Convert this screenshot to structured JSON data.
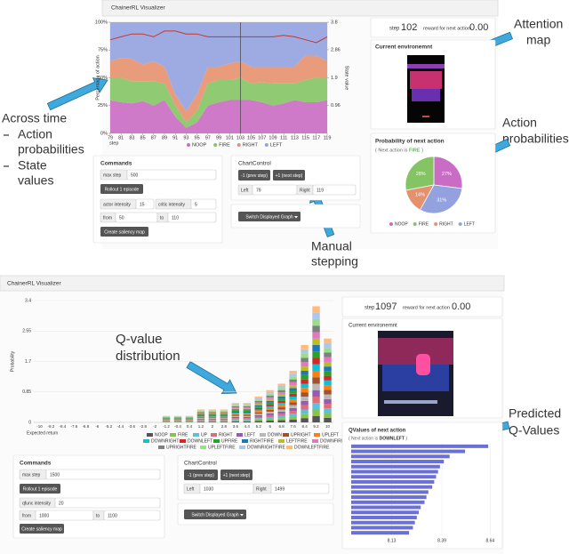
{
  "annotations": {
    "across_time": "Across time",
    "across_items": [
      [
        "Action",
        "probabilities"
      ],
      [
        "State",
        "values"
      ]
    ],
    "attention_map": [
      "Attention",
      "map"
    ],
    "action_probabilities": [
      "Action",
      "probabilities"
    ],
    "manual_stepping": [
      "Manual",
      "stepping"
    ],
    "q_value_distribution": [
      "Q-value",
      "distribution"
    ],
    "predicted_q_values": [
      "Predicted",
      "Q-Values"
    ]
  },
  "top": {
    "app_title": "ChainerRL Visualizer",
    "chart": {
      "type": "area",
      "ylabel": "Percentage of action",
      "y2label": "State value",
      "xlabel": "step",
      "x": [
        79,
        81,
        83,
        85,
        87,
        89,
        91,
        93,
        95,
        97,
        99,
        101,
        103,
        105,
        107,
        109,
        111,
        113,
        115,
        117,
        119
      ],
      "xlim": [
        79,
        119
      ],
      "xticks": [
        79,
        81,
        83,
        85,
        87,
        89,
        91,
        93,
        95,
        97,
        99,
        101,
        103,
        105,
        107,
        109,
        111,
        113,
        115,
        117,
        119
      ],
      "ylim": [
        0,
        100
      ],
      "yticks": [
        {
          "value": 0,
          "label": "0%"
        },
        {
          "value": 25,
          "label": "25%"
        },
        {
          "value": 50,
          "label": "50%"
        },
        {
          "value": 75,
          "label": "75%"
        },
        {
          "value": 100,
          "label": "100%"
        }
      ],
      "y2lim": [
        0,
        3.8
      ],
      "y2ticks": [
        0.96,
        1.9,
        2.86,
        3.8
      ],
      "current_x": 103,
      "series": [
        {
          "name": "NOOP",
          "color": "#c96cc3",
          "values": [
            30,
            28,
            27,
            29,
            25,
            30,
            15,
            5,
            10,
            25,
            28,
            30,
            30,
            30,
            28,
            25,
            27,
            30,
            28,
            28,
            30
          ]
        },
        {
          "name": "FIRE",
          "color": "#84c463",
          "values": [
            20,
            22,
            20,
            18,
            22,
            15,
            10,
            5,
            10,
            20,
            20,
            18,
            20,
            15,
            18,
            20,
            18,
            15,
            20,
            22,
            20
          ]
        },
        {
          "name": "RIGHT",
          "color": "#e5916e",
          "values": [
            15,
            18,
            20,
            15,
            18,
            15,
            10,
            10,
            15,
            15,
            12,
            15,
            15,
            15,
            14,
            15,
            15,
            15,
            22,
            20,
            15
          ]
        },
        {
          "name": "LEFT",
          "color": "#93a2df",
          "values": [
            35,
            32,
            33,
            38,
            35,
            40,
            65,
            80,
            65,
            40,
            40,
            37,
            35,
            40,
            40,
            40,
            40,
            40,
            30,
            30,
            35
          ]
        }
      ],
      "state_value": {
        "axis": "y2",
        "color": "#c0392b",
        "values": [
          3.2,
          3.3,
          3.4,
          3.4,
          3.3,
          3.5,
          3.5,
          3.4,
          3.4,
          3.3,
          3.3,
          3.3,
          3.3,
          3.3,
          3.3,
          3.3,
          3.35,
          3.3,
          3.2,
          3.1,
          3.3
        ]
      }
    },
    "status": {
      "step_label": "step",
      "step": "102",
      "reward_label": "reward for next action",
      "reward": "0.00"
    },
    "environment_title": "Current environemnt",
    "action_panel": {
      "title": "Probability of next action",
      "note_open": "( Next action is",
      "note_action": "FIRE",
      "note_close": ")",
      "pie": {
        "type": "pie",
        "categories": [
          "NOOP",
          "FIRE",
          "RIGHT",
          "LEFT"
        ],
        "values": [
          27,
          28,
          14,
          31
        ],
        "value_labels": [
          "27%",
          "28%",
          "14%",
          "31%"
        ],
        "colors": [
          "#c96cc3",
          "#84c463",
          "#e5916e",
          "#93a2df"
        ]
      }
    },
    "commands": {
      "title": "Commands",
      "max_step_label": "max step",
      "max_step": "500",
      "rollout": "Rollout 1 episode",
      "actor_label": "actor intensity",
      "actor": "15",
      "critic_label": "critic intensity",
      "critic": "5",
      "from_label": "from",
      "from": "50",
      "to_label": "to",
      "to": "110",
      "saliency": "Create saliency map"
    },
    "chart_control": {
      "title": "ChartControl",
      "prev": "-1 (prev step)",
      "next": "+1 (next step)",
      "left_label": "Left",
      "left": "79",
      "right_label": "Right",
      "right": "119",
      "switch": "Switch Displayed Graph"
    }
  },
  "bottom": {
    "app_title": "ChainerRL Visualizer",
    "chart": {
      "type": "stacked-bar",
      "ylabel": "Probability",
      "xlabel": "Expected return",
      "x": [
        -10,
        -9.2,
        -8.4,
        -7.6,
        -6.8,
        -6,
        -5.2,
        -4.4,
        -3.6,
        -2.8,
        -2,
        -1.2,
        -0.4,
        0.4,
        1.2,
        2,
        2.8,
        3.6,
        4.4,
        5.2,
        6,
        6.8,
        7.6,
        8.4,
        9.2,
        10
      ],
      "xlim": [
        -10.4,
        10.4
      ],
      "xticks": [
        -10,
        -9.2,
        -8.4,
        -7.6,
        -6.8,
        -6,
        -5.2,
        -4.4,
        -3.6,
        -2.8,
        -2,
        -1.2,
        -0.4,
        0.4,
        1.2,
        2,
        2.8,
        3.6,
        4.4,
        5.2,
        6,
        6.8,
        7.6,
        8.4,
        9.2,
        10
      ],
      "ylim": [
        0,
        3.4
      ],
      "yticks": [
        0,
        0.85,
        1.7,
        2.55,
        3.4
      ],
      "series": [
        {
          "name": "NOOP",
          "color": "#555555",
          "values": [
            0,
            0,
            0,
            0,
            0,
            0,
            0,
            0,
            0,
            0,
            0,
            0.01,
            0.01,
            0.01,
            0.02,
            0.02,
            0.02,
            0.03,
            0.03,
            0.04,
            0.05,
            0.06,
            0.08,
            0.12,
            0.18,
            0.13
          ]
        },
        {
          "name": "FIRE",
          "color": "#8bc34a",
          "values": [
            0,
            0,
            0,
            0,
            0,
            0,
            0,
            0,
            0,
            0,
            0,
            0.01,
            0.01,
            0.01,
            0.02,
            0.02,
            0.02,
            0.03,
            0.03,
            0.04,
            0.05,
            0.06,
            0.08,
            0.12,
            0.18,
            0.13
          ]
        },
        {
          "name": "UP",
          "color": "#5bc0de",
          "values": [
            0,
            0,
            0,
            0,
            0,
            0,
            0,
            0,
            0,
            0,
            0,
            0.01,
            0.01,
            0.01,
            0.02,
            0.02,
            0.02,
            0.03,
            0.03,
            0.04,
            0.05,
            0.06,
            0.08,
            0.12,
            0.18,
            0.13
          ]
        },
        {
          "name": "RIGHT",
          "color": "#e06c75",
          "values": [
            0,
            0,
            0,
            0,
            0,
            0,
            0,
            0,
            0,
            0,
            0,
            0.01,
            0.01,
            0.01,
            0.02,
            0.02,
            0.02,
            0.03,
            0.03,
            0.04,
            0.05,
            0.06,
            0.08,
            0.12,
            0.18,
            0.13
          ]
        },
        {
          "name": "LEFT",
          "color": "#9b59b6",
          "values": [
            0,
            0,
            0,
            0,
            0,
            0,
            0,
            0,
            0,
            0,
            0,
            0.01,
            0.01,
            0.01,
            0.02,
            0.02,
            0.02,
            0.03,
            0.03,
            0.04,
            0.05,
            0.06,
            0.08,
            0.12,
            0.18,
            0.13
          ]
        },
        {
          "name": "DOWN",
          "color": "#b8b8b8",
          "values": [
            0,
            0,
            0,
            0,
            0,
            0,
            0,
            0,
            0,
            0,
            0,
            0.01,
            0.01,
            0.01,
            0.02,
            0.02,
            0.02,
            0.03,
            0.03,
            0.04,
            0.05,
            0.06,
            0.08,
            0.12,
            0.18,
            0.13
          ]
        },
        {
          "name": "UPRIGHT",
          "color": "#a0522d",
          "values": [
            0,
            0,
            0,
            0,
            0,
            0,
            0,
            0,
            0,
            0,
            0,
            0.01,
            0.01,
            0.01,
            0.02,
            0.02,
            0.02,
            0.03,
            0.03,
            0.04,
            0.05,
            0.06,
            0.08,
            0.12,
            0.18,
            0.13
          ]
        },
        {
          "name": "UPLEFT",
          "color": "#ff7f0e",
          "values": [
            0,
            0,
            0,
            0,
            0,
            0,
            0,
            0,
            0,
            0,
            0,
            0.01,
            0.01,
            0.01,
            0.02,
            0.02,
            0.02,
            0.03,
            0.03,
            0.04,
            0.05,
            0.06,
            0.08,
            0.12,
            0.18,
            0.13
          ]
        },
        {
          "name": "DOWNRIGHT",
          "color": "#17becf",
          "values": [
            0,
            0,
            0,
            0,
            0,
            0,
            0,
            0,
            0,
            0,
            0,
            0.01,
            0.01,
            0.01,
            0.02,
            0.02,
            0.02,
            0.03,
            0.03,
            0.04,
            0.05,
            0.06,
            0.08,
            0.12,
            0.18,
            0.13
          ]
        },
        {
          "name": "DOWNLEFT",
          "color": "#d62728",
          "values": [
            0,
            0,
            0,
            0,
            0,
            0,
            0,
            0,
            0,
            0,
            0,
            0.01,
            0.01,
            0.01,
            0.02,
            0.02,
            0.02,
            0.03,
            0.03,
            0.04,
            0.05,
            0.06,
            0.08,
            0.12,
            0.18,
            0.13
          ]
        },
        {
          "name": "UPFIRE",
          "color": "#2ca02c",
          "values": [
            0,
            0,
            0,
            0,
            0,
            0,
            0,
            0,
            0,
            0,
            0,
            0.01,
            0.01,
            0.01,
            0.02,
            0.02,
            0.02,
            0.03,
            0.03,
            0.04,
            0.05,
            0.06,
            0.08,
            0.12,
            0.18,
            0.13
          ]
        },
        {
          "name": "RIGHTFIRE",
          "color": "#1f77b4",
          "values": [
            0,
            0,
            0,
            0,
            0,
            0,
            0,
            0,
            0,
            0,
            0,
            0.01,
            0.01,
            0.01,
            0.02,
            0.02,
            0.02,
            0.03,
            0.03,
            0.04,
            0.05,
            0.06,
            0.08,
            0.12,
            0.18,
            0.13
          ]
        },
        {
          "name": "LEFTFIRE",
          "color": "#bcbd22",
          "values": [
            0,
            0,
            0,
            0,
            0,
            0,
            0,
            0,
            0,
            0,
            0,
            0.01,
            0.01,
            0.01,
            0.02,
            0.02,
            0.02,
            0.03,
            0.03,
            0.04,
            0.05,
            0.06,
            0.08,
            0.12,
            0.18,
            0.13
          ]
        },
        {
          "name": "DOWNFIRE",
          "color": "#e377c2",
          "values": [
            0,
            0,
            0,
            0,
            0,
            0,
            0,
            0,
            0,
            0,
            0,
            0.01,
            0.01,
            0.01,
            0.02,
            0.02,
            0.02,
            0.03,
            0.03,
            0.04,
            0.05,
            0.06,
            0.08,
            0.12,
            0.18,
            0.13
          ]
        },
        {
          "name": "UPRIGHTFIRE",
          "color": "#7f7f7f",
          "values": [
            0,
            0,
            0,
            0,
            0,
            0,
            0,
            0,
            0,
            0,
            0,
            0.01,
            0.01,
            0.01,
            0.02,
            0.02,
            0.02,
            0.03,
            0.03,
            0.04,
            0.05,
            0.06,
            0.08,
            0.12,
            0.18,
            0.13
          ]
        },
        {
          "name": "UPLEFTFIRE",
          "color": "#98df8a",
          "values": [
            0,
            0,
            0,
            0,
            0,
            0,
            0,
            0,
            0,
            0,
            0,
            0.01,
            0.01,
            0.01,
            0.02,
            0.02,
            0.02,
            0.03,
            0.03,
            0.04,
            0.05,
            0.06,
            0.08,
            0.12,
            0.18,
            0.13
          ]
        },
        {
          "name": "DOWNRIGHTFIRE",
          "color": "#aec7e8",
          "values": [
            0,
            0,
            0,
            0,
            0,
            0,
            0,
            0,
            0,
            0,
            0,
            0.01,
            0.01,
            0.01,
            0.02,
            0.02,
            0.02,
            0.03,
            0.03,
            0.04,
            0.05,
            0.06,
            0.08,
            0.12,
            0.18,
            0.13
          ]
        },
        {
          "name": "DOWNLEFTFIRE",
          "color": "#ffbb78",
          "values": [
            0,
            0,
            0,
            0,
            0,
            0,
            0,
            0,
            0,
            0,
            0,
            0.01,
            0.01,
            0.01,
            0.02,
            0.02,
            0.02,
            0.03,
            0.03,
            0.04,
            0.05,
            0.06,
            0.08,
            0.12,
            0.18,
            0.13
          ]
        }
      ]
    },
    "status": {
      "step_label": "step",
      "step": "1097",
      "reward_label": "reward for next action",
      "reward": "0.00"
    },
    "environment_title": "Current environemnt",
    "qvalue_panel": {
      "title": "QValues of next action",
      "note_open": "( Next action is",
      "note_action": "DOWNLEFT",
      "note_close": ")",
      "bars": {
        "type": "hbar",
        "color": "#6b70d8",
        "values": [
          8.63,
          8.51,
          8.43,
          8.4,
          8.38,
          8.37,
          8.36,
          8.35,
          8.34,
          8.32,
          8.31,
          8.3,
          8.28,
          8.27,
          8.26,
          8.25,
          8.24,
          8.22
        ],
        "xlim": [
          7.92,
          8.68
        ],
        "xticks": [
          8.13,
          8.39,
          8.64
        ]
      }
    },
    "commands": {
      "title": "Commands",
      "max_step_label": "max step",
      "max_step": "1500",
      "rollout": "Rollout 1 episode",
      "qfunc_label": "qfunc intensity",
      "qfunc": "20",
      "from_label": "from",
      "from": "1000",
      "to_label": "to",
      "to": "1100",
      "saliency": "Create saliency map"
    },
    "chart_control": {
      "title": "ChartControl",
      "prev": "-1 (prev step)",
      "next": "+1 (next step)",
      "left_label": "Left",
      "left": "1030",
      "right_label": "Right",
      "right": "1499",
      "switch": "Switch Displayed Graph"
    }
  }
}
